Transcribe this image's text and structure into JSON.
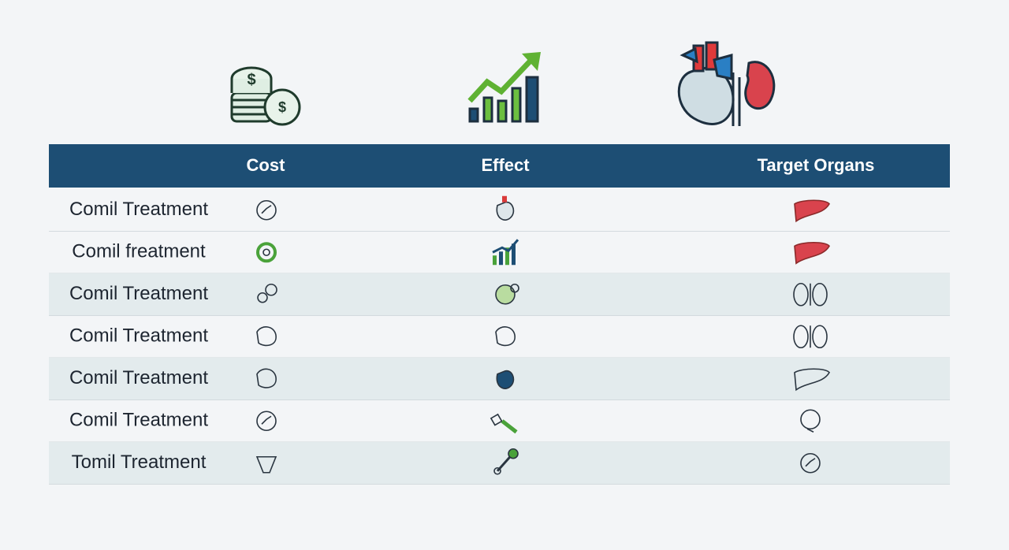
{
  "header": {
    "columns": [
      "Cost",
      "Effect",
      "Target Organs"
    ]
  },
  "table": {
    "rows": [
      "Comil Treatment",
      "Comil freatment",
      "Comil Treatment",
      "Comil Treatment",
      "Comil Treatment",
      "Comil Treatment",
      "Tomil Treatment"
    ]
  }
}
